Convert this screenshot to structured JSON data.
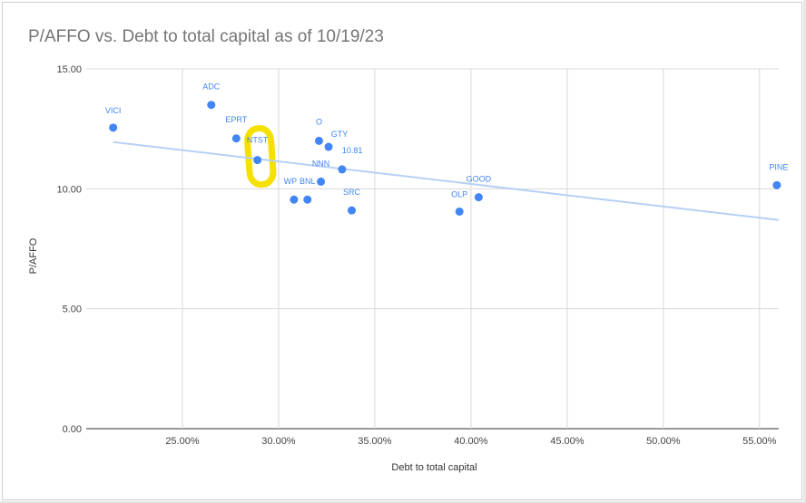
{
  "chart_data": {
    "type": "scatter",
    "title": "P/AFFO vs. Debt to total capital as of 10/19/23",
    "xlabel": "Debt to total capital",
    "ylabel": "P/AFFO",
    "xlim": [
      0.2,
      0.56
    ],
    "ylim": [
      0,
      15
    ],
    "x_ticks": [
      "25.00%",
      "30.00%",
      "35.00%",
      "40.00%",
      "45.00%",
      "50.00%",
      "55.00%"
    ],
    "y_ticks": [
      "0.00",
      "5.00",
      "10.00",
      "15.00"
    ],
    "grid": true,
    "series": [
      {
        "color": "#4285f4",
        "points": [
          {
            "label": "VICI",
            "x": 0.214,
            "y": 12.55
          },
          {
            "label": "ADC",
            "x": 0.265,
            "y": 13.5
          },
          {
            "label": "EPRT",
            "x": 0.278,
            "y": 12.1
          },
          {
            "label": "NTST",
            "x": 0.289,
            "y": 11.2
          },
          {
            "label": "O",
            "x": 0.321,
            "y": 12.0
          },
          {
            "label": "GTY",
            "x": 0.326,
            "y": 11.75
          },
          {
            "label": "10.81",
            "x": 0.333,
            "y": 10.81
          },
          {
            "label": "NNN",
            "x": 0.322,
            "y": 10.3
          },
          {
            "label": "WP",
            "x": 0.308,
            "y": 9.55
          },
          {
            "label": "BNL",
            "x": 0.315,
            "y": 9.55
          },
          {
            "label": "SRC",
            "x": 0.338,
            "y": 9.1
          },
          {
            "label": "OLP",
            "x": 0.394,
            "y": 9.05
          },
          {
            "label": "GOOD",
            "x": 0.404,
            "y": 9.65
          },
          {
            "label": "PINE",
            "x": 0.559,
            "y": 10.15
          }
        ]
      }
    ],
    "trendline": {
      "x": [
        0.214,
        0.56
      ],
      "y": [
        11.95,
        8.7
      ],
      "color": "#b7d0f7"
    },
    "highlight": {
      "label": "NTST",
      "color": "#f6e000"
    }
  }
}
